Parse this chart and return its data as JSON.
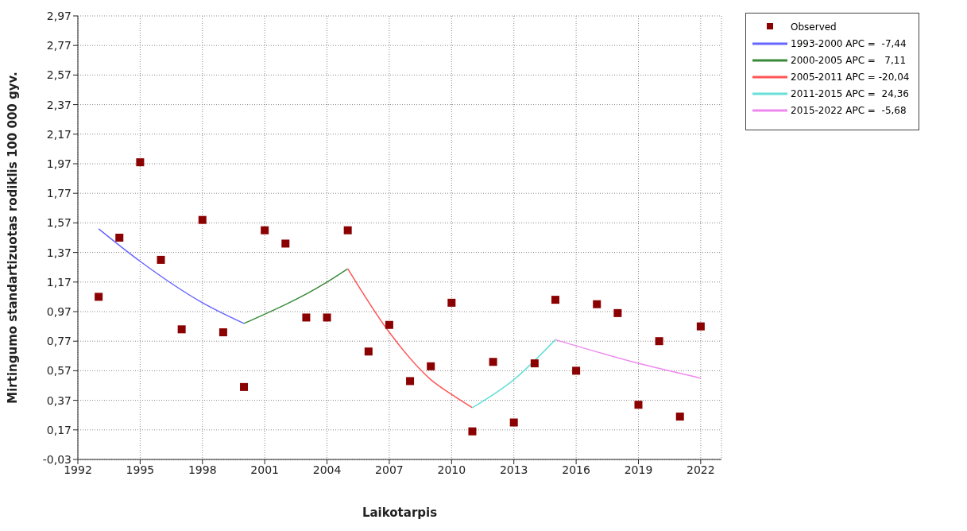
{
  "chart_data": {
    "type": "line",
    "xlabel": "Laikotarpis",
    "ylabel": "Mirtingumo standartizuotas rodiklis 100 000 gyv.",
    "xlim": [
      1992,
      2023
    ],
    "xticks": [
      1992,
      1995,
      1998,
      2001,
      2004,
      2007,
      2010,
      2013,
      2016,
      2019,
      2022
    ],
    "ylim": [
      -0.03,
      2.97
    ],
    "yticks": [
      {
        "value": -0.03,
        "label": "-0,03"
      },
      {
        "value": 0.17,
        "label": "0,17"
      },
      {
        "value": 0.37,
        "label": "0,37"
      },
      {
        "value": 0.57,
        "label": "0,57"
      },
      {
        "value": 0.77,
        "label": "0,77"
      },
      {
        "value": 0.97,
        "label": "0,97"
      },
      {
        "value": 1.17,
        "label": "1,17"
      },
      {
        "value": 1.37,
        "label": "1,37"
      },
      {
        "value": 1.57,
        "label": "1,57"
      },
      {
        "value": 1.77,
        "label": "1,77"
      },
      {
        "value": 1.97,
        "label": "1,97"
      },
      {
        "value": 2.17,
        "label": "2,17"
      },
      {
        "value": 2.37,
        "label": "2,37"
      },
      {
        "value": 2.57,
        "label": "2,57"
      },
      {
        "value": 2.77,
        "label": "2,77"
      },
      {
        "value": 2.97,
        "label": "2,97"
      }
    ],
    "grid": true,
    "legend": "top right",
    "series": [
      {
        "name": "Observed",
        "type": "scatter",
        "marker": "square",
        "color": "#8b0000",
        "x": [
          1993,
          1994,
          1995,
          1996,
          1997,
          1998,
          1999,
          2000,
          2001,
          2002,
          2003,
          2004,
          2005,
          2006,
          2007,
          2008,
          2009,
          2010,
          2011,
          2012,
          2013,
          2014,
          2015,
          2016,
          2017,
          2018,
          2019,
          2020,
          2021,
          2022
        ],
        "values": [
          1.07,
          1.47,
          1.98,
          1.32,
          0.85,
          1.59,
          0.83,
          0.46,
          1.52,
          1.43,
          0.93,
          0.93,
          1.52,
          0.7,
          0.88,
          0.5,
          0.6,
          1.03,
          0.16,
          0.63,
          0.22,
          0.62,
          1.05,
          0.57,
          1.02,
          0.96,
          0.34,
          0.77,
          0.26,
          0.87
        ]
      },
      {
        "name": "1993-2000 APC =  -7,44",
        "marker": "none",
        "color": "#6666ff",
        "x": [
          1993,
          1995,
          1998,
          2000
        ],
        "values": [
          1.53,
          1.31,
          1.03,
          0.89
        ]
      },
      {
        "name": "2000-2005 APC =   7,11",
        "marker": "none",
        "color": "#3a8a3a",
        "x": [
          2000,
          2004,
          2005
        ],
        "values": [
          0.89,
          1.17,
          1.26
        ]
      },
      {
        "name": "2005-2011 APC = -20,04",
        "marker": "none",
        "color": "#ff5555",
        "x": [
          2005,
          2007,
          2009,
          2010,
          2011
        ],
        "values": [
          1.26,
          0.83,
          0.51,
          0.41,
          0.32
        ]
      },
      {
        "name": "2011-2015 APC =  24,36",
        "marker": "none",
        "color": "#66e0d8",
        "x": [
          2011,
          2013,
          2015
        ],
        "values": [
          0.32,
          0.51,
          0.78
        ]
      },
      {
        "name": "2015-2022 APC =  -5,68",
        "marker": "none",
        "color": "#ee88ee",
        "x": [
          2015,
          2019,
          2022
        ],
        "values": [
          0.78,
          0.62,
          0.52
        ]
      }
    ]
  }
}
